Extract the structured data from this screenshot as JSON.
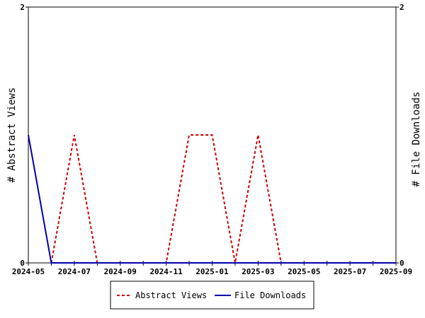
{
  "chart_data": {
    "type": "line",
    "title": "",
    "ylabel_left": "# Abstract Views",
    "ylabel_right": "# File Downloads",
    "y_left_ticks": [
      "0",
      "2"
    ],
    "y_right_ticks": [
      "0",
      "2"
    ],
    "ylim_left": [
      0,
      2
    ],
    "ylim_right": [
      0,
      2
    ],
    "x_tick_labels": [
      "2024-05",
      "2024-07",
      "2024-09",
      "2024-11",
      "2025-01",
      "2025-03",
      "2025-05",
      "2025-07",
      "2025-09"
    ],
    "x": [
      "2024-05",
      "2024-06",
      "2024-07",
      "2024-08",
      "2024-09",
      "2024-10",
      "2024-11",
      "2024-12",
      "2025-01",
      "2025-02",
      "2025-03",
      "2025-04",
      "2025-05",
      "2025-06",
      "2025-07",
      "2025-08",
      "2025-09"
    ],
    "series": [
      {
        "name": "Abstract Views",
        "axis": "left",
        "color": "#cc0000",
        "dash": "dashed",
        "values": [
          null,
          0,
          1,
          0,
          0,
          0,
          0,
          1,
          1,
          0,
          1,
          0,
          null,
          null,
          null,
          null,
          null
        ]
      },
      {
        "name": "File Downloads",
        "axis": "right",
        "color": "#0000aa",
        "dash": "solid",
        "values": [
          1,
          0,
          0,
          0,
          0,
          0,
          0,
          0,
          0,
          0,
          0,
          0,
          0,
          0,
          0,
          0,
          0
        ]
      }
    ],
    "grid": false,
    "legend_position": "bottom"
  }
}
